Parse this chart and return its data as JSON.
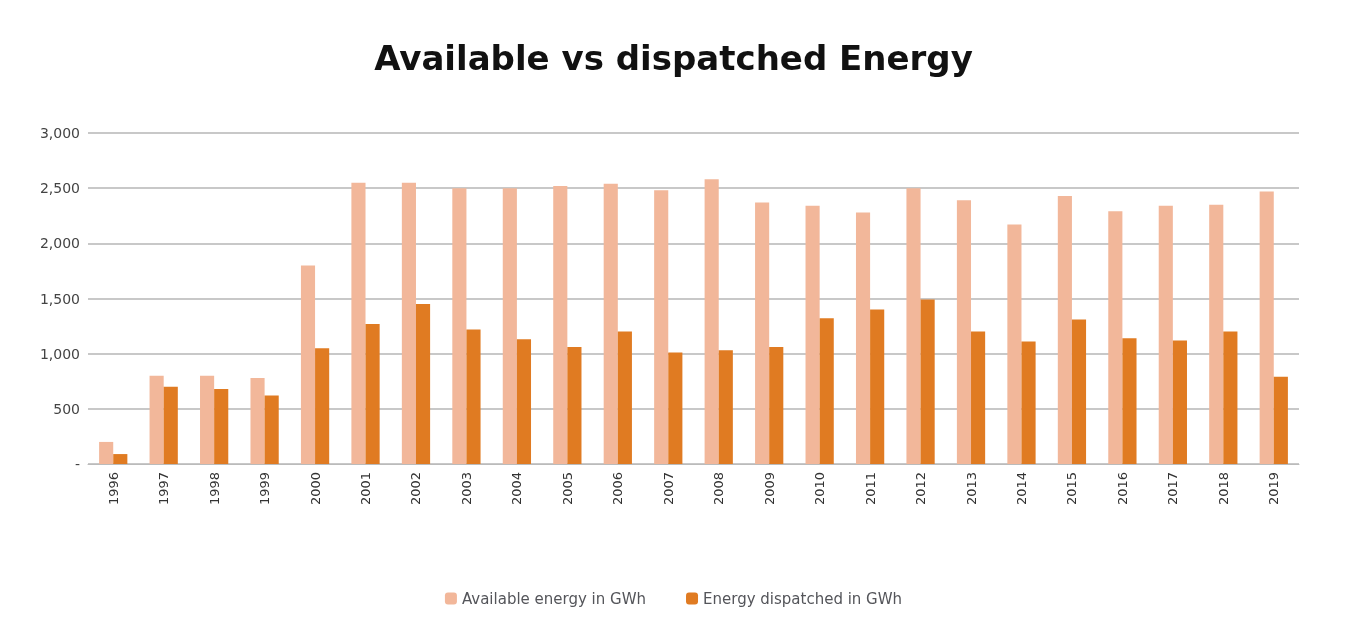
{
  "chart_data": {
    "type": "bar",
    "title": "Available vs dispatched Energy",
    "categories": [
      "1996",
      "1997",
      "1998",
      "1999",
      "2000",
      "2001",
      "2002",
      "2003",
      "2004",
      "2005",
      "2006",
      "2007",
      "2008",
      "2009",
      "2010",
      "2011",
      "2012",
      "2013",
      "2014",
      "2015",
      "2016",
      "2017",
      "2018",
      "2019"
    ],
    "series": [
      {
        "name": "Available energy in GWh",
        "color": "#f2b79a",
        "values": [
          200,
          800,
          800,
          780,
          1800,
          2550,
          2550,
          2500,
          2500,
          2520,
          2540,
          2480,
          2580,
          2370,
          2340,
          2280,
          2500,
          2390,
          2170,
          2430,
          2290,
          2340,
          2350,
          2470
        ]
      },
      {
        "name": "Energy dispatched in GWh",
        "color": "#e07b22",
        "values": [
          90,
          700,
          680,
          620,
          1050,
          1270,
          1450,
          1220,
          1130,
          1060,
          1200,
          1010,
          1030,
          1060,
          1320,
          1400,
          1490,
          1200,
          1110,
          1310,
          1140,
          1120,
          1200,
          790
        ]
      }
    ],
    "ylim": [
      0,
      3000
    ],
    "yticks": [
      {
        "value": 0,
        "label": "-"
      },
      {
        "value": 500,
        "label": "500"
      },
      {
        "value": 1000,
        "label": "1,000"
      },
      {
        "value": 1500,
        "label": "1,500"
      },
      {
        "value": 2000,
        "label": "2,000"
      },
      {
        "value": 2500,
        "label": "2,500"
      },
      {
        "value": 3000,
        "label": "3,000"
      }
    ],
    "grid": "y",
    "legend": "bottom"
  }
}
